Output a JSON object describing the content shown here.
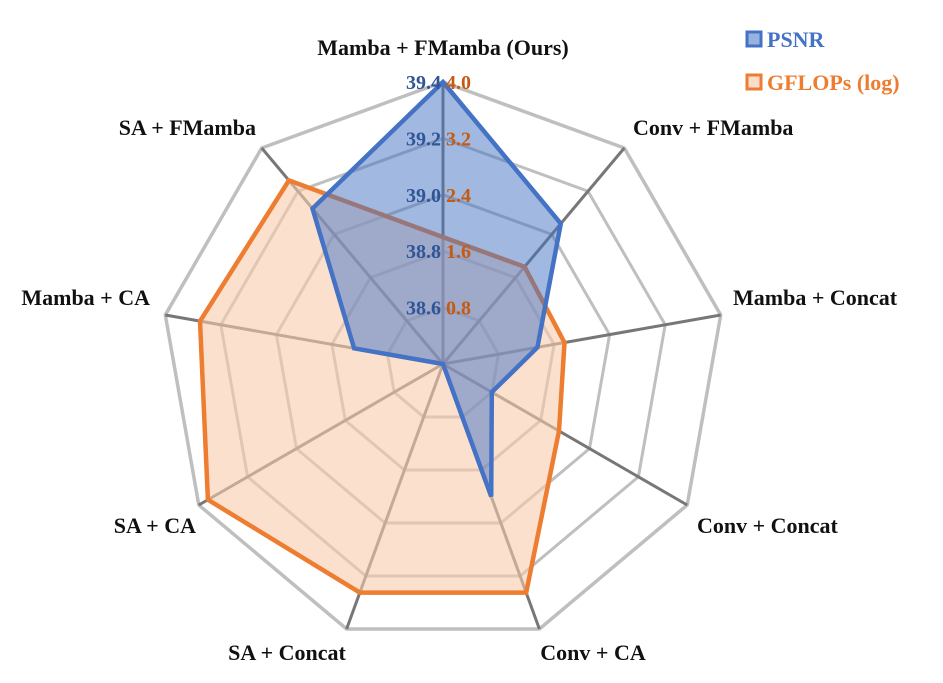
{
  "chart_data": {
    "type": "radar",
    "categories": [
      "Mamba + FMamba (Ours)",
      "Conv + FMamba",
      "Mamba + Concat",
      "Conv + Concat",
      "Conv + CA",
      "SA + Concat",
      "SA + CA",
      "Mamba + CA",
      "SA + FMamba"
    ],
    "series": [
      {
        "name": "PSNR",
        "color": "#4472c4",
        "fill": "#4472c4",
        "axis_min": 38.4,
        "axis_max": 39.4,
        "values": [
          39.4,
          39.05,
          38.74,
          38.6,
          38.9,
          38.4,
          38.4,
          38.72,
          39.12
        ],
        "tick_labels": [
          "38.6",
          "38.8",
          "39.0",
          "39.2",
          "39.4"
        ]
      },
      {
        "name": "GFLOPs (log)",
        "color": "#ed7d31",
        "fill": "#f8cbad",
        "axis_min": 0,
        "axis_max": 4.0,
        "values": [
          1.8,
          1.8,
          1.75,
          1.9,
          3.45,
          3.45,
          3.85,
          3.5,
          3.4
        ],
        "tick_labels": [
          "0.8",
          "1.6",
          "2.4",
          "3.2",
          "4.0"
        ]
      }
    ],
    "rings": 5,
    "legend_position": "top-right"
  }
}
